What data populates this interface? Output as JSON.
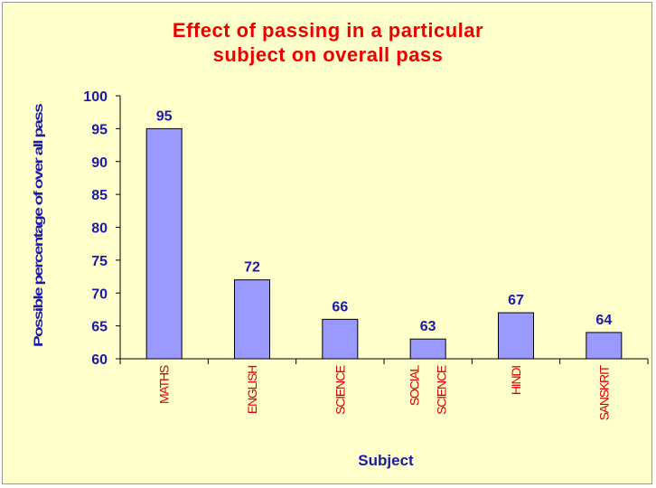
{
  "chart_data": {
    "type": "bar",
    "title": "Effect of passing in a particular subject on overall pass",
    "title_lines": [
      "Effect of passing in a particular",
      "subject on overall pass"
    ],
    "xlabel": "Subject",
    "ylabel": "Possible percentage of over all pass",
    "categories": [
      "MATHS",
      "ENGLISH",
      "SCIENCE",
      "SOCIAL SCIENCE",
      "HINDI",
      "SANSKRIT"
    ],
    "category_lines": [
      [
        "MATHS"
      ],
      [
        "ENGLISH"
      ],
      [
        "SCIENCE"
      ],
      [
        "SOCIAL",
        "SCIENCE"
      ],
      [
        "HINDI"
      ],
      [
        "SANSKRIT"
      ]
    ],
    "values": [
      95,
      72,
      66,
      63,
      67,
      64
    ],
    "data_labels": [
      "95",
      "72",
      "66",
      "63",
      "67",
      "64"
    ],
    "ylim": [
      60,
      100
    ],
    "yticks": [
      60,
      65,
      70,
      75,
      80,
      85,
      90,
      95,
      100
    ],
    "grid": false,
    "legend": "none",
    "colors": {
      "background": "#ffffcc",
      "bar_fill": "#9999ff",
      "bar_stroke": "#000000",
      "title": "#ee0000",
      "axis_text": "#1a1aa6",
      "category_text": "#dd0000"
    }
  }
}
